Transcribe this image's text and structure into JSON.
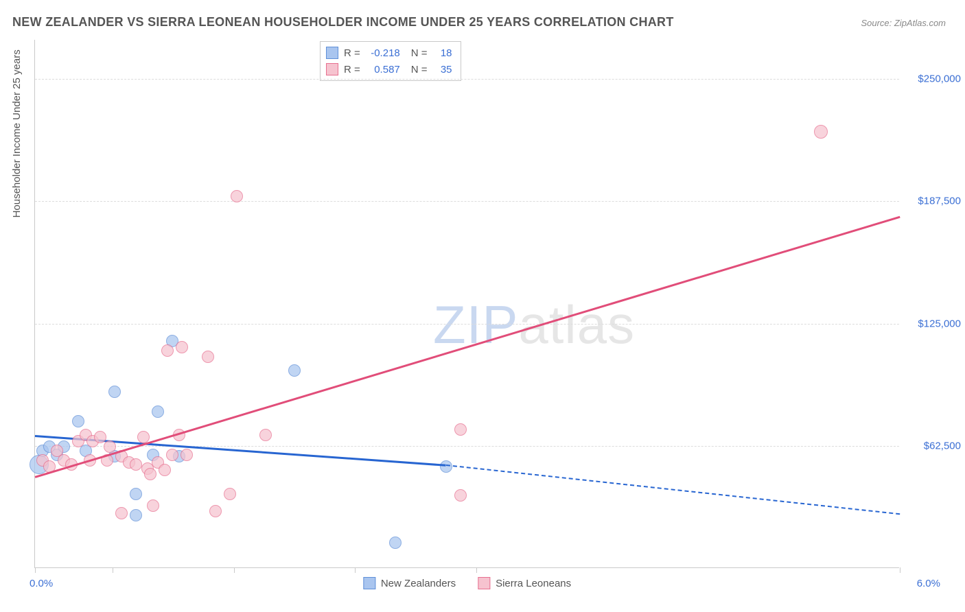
{
  "title": "NEW ZEALANDER VS SIERRA LEONEAN HOUSEHOLDER INCOME UNDER 25 YEARS CORRELATION CHART",
  "source": "Source: ZipAtlas.com",
  "yaxis_title": "Householder Income Under 25 years",
  "watermark_zip": "ZIP",
  "watermark_atlas": "atlas",
  "chart": {
    "type": "scatter",
    "x_min": 0.0,
    "x_max": 6.0,
    "y_min": 0,
    "y_max": 270000,
    "x_tick_label_left": "0.0%",
    "x_tick_label_right": "6.0%",
    "x_tick_positions_pct": [
      0,
      9,
      23,
      37,
      51,
      100
    ],
    "y_gridlines": [
      {
        "value": 62500,
        "label": "$62,500"
      },
      {
        "value": 125000,
        "label": "$125,000"
      },
      {
        "value": 187500,
        "label": "$187,500"
      },
      {
        "value": 250000,
        "label": "$250,000"
      }
    ],
    "colors": {
      "blue_fill": "#a9c5ef",
      "blue_stroke": "#5f8fd8",
      "blue_line": "#2765d1",
      "pink_fill": "#f6c3cf",
      "pink_stroke": "#e76f8f",
      "pink_line": "#e14d79",
      "axis": "#c9c9c9",
      "grid": "#dcdcdc",
      "text": "#555555",
      "value_text": "#3b6fd4"
    },
    "marker_radius": 9,
    "series": [
      {
        "name": "New Zealanders",
        "color_key": "blue",
        "R": "-0.218",
        "N": "18",
        "trend": {
          "x1": 0.0,
          "y1": 68000,
          "x2": 2.85,
          "y2": 53000,
          "dash_to_x": 6.0,
          "dash_to_y": 28000
        },
        "points": [
          {
            "x": 0.03,
            "y": 53000,
            "r": 14
          },
          {
            "x": 0.05,
            "y": 60000,
            "r": 9
          },
          {
            "x": 0.1,
            "y": 62000,
            "r": 9
          },
          {
            "x": 0.15,
            "y": 58000,
            "r": 9
          },
          {
            "x": 0.2,
            "y": 62000,
            "r": 9
          },
          {
            "x": 0.3,
            "y": 75000,
            "r": 9
          },
          {
            "x": 0.35,
            "y": 60000,
            "r": 9
          },
          {
            "x": 0.55,
            "y": 57000,
            "r": 9
          },
          {
            "x": 0.55,
            "y": 90000,
            "r": 9
          },
          {
            "x": 0.7,
            "y": 38000,
            "r": 9
          },
          {
            "x": 0.7,
            "y": 27000,
            "r": 9
          },
          {
            "x": 0.82,
            "y": 58000,
            "r": 9
          },
          {
            "x": 0.85,
            "y": 80000,
            "r": 9
          },
          {
            "x": 0.95,
            "y": 116000,
            "r": 9
          },
          {
            "x": 1.0,
            "y": 57000,
            "r": 9
          },
          {
            "x": 1.8,
            "y": 101000,
            "r": 9
          },
          {
            "x": 2.5,
            "y": 13000,
            "r": 9
          },
          {
            "x": 2.85,
            "y": 52000,
            "r": 9
          }
        ]
      },
      {
        "name": "Sierra Leoneans",
        "color_key": "pink",
        "R": "0.587",
        "N": "35",
        "trend": {
          "x1": 0.0,
          "y1": 47000,
          "x2": 6.0,
          "y2": 180000
        },
        "points": [
          {
            "x": 0.05,
            "y": 55000,
            "r": 9
          },
          {
            "x": 0.1,
            "y": 52000,
            "r": 9
          },
          {
            "x": 0.15,
            "y": 60000,
            "r": 9
          },
          {
            "x": 0.2,
            "y": 55000,
            "r": 9
          },
          {
            "x": 0.25,
            "y": 53000,
            "r": 9
          },
          {
            "x": 0.3,
            "y": 65000,
            "r": 9
          },
          {
            "x": 0.35,
            "y": 68000,
            "r": 9
          },
          {
            "x": 0.38,
            "y": 55000,
            "r": 9
          },
          {
            "x": 0.4,
            "y": 65000,
            "r": 9
          },
          {
            "x": 0.45,
            "y": 67000,
            "r": 9
          },
          {
            "x": 0.5,
            "y": 55000,
            "r": 9
          },
          {
            "x": 0.52,
            "y": 62000,
            "r": 9
          },
          {
            "x": 0.6,
            "y": 57000,
            "r": 9
          },
          {
            "x": 0.6,
            "y": 28000,
            "r": 9
          },
          {
            "x": 0.65,
            "y": 54000,
            "r": 9
          },
          {
            "x": 0.7,
            "y": 53000,
            "r": 9
          },
          {
            "x": 0.75,
            "y": 67000,
            "r": 9
          },
          {
            "x": 0.78,
            "y": 51000,
            "r": 9
          },
          {
            "x": 0.8,
            "y": 48000,
            "r": 9
          },
          {
            "x": 0.82,
            "y": 32000,
            "r": 9
          },
          {
            "x": 0.85,
            "y": 54000,
            "r": 9
          },
          {
            "x": 0.9,
            "y": 50000,
            "r": 9
          },
          {
            "x": 0.92,
            "y": 111000,
            "r": 9
          },
          {
            "x": 0.95,
            "y": 58000,
            "r": 9
          },
          {
            "x": 1.0,
            "y": 68000,
            "r": 9
          },
          {
            "x": 1.02,
            "y": 113000,
            "r": 9
          },
          {
            "x": 1.05,
            "y": 58000,
            "r": 9
          },
          {
            "x": 1.2,
            "y": 108000,
            "r": 9
          },
          {
            "x": 1.25,
            "y": 29000,
            "r": 9
          },
          {
            "x": 1.35,
            "y": 38000,
            "r": 9
          },
          {
            "x": 1.4,
            "y": 190000,
            "r": 9
          },
          {
            "x": 1.6,
            "y": 68000,
            "r": 9
          },
          {
            "x": 2.95,
            "y": 71000,
            "r": 9
          },
          {
            "x": 2.95,
            "y": 37000,
            "r": 9
          },
          {
            "x": 5.45,
            "y": 223000,
            "r": 10
          }
        ]
      }
    ]
  }
}
